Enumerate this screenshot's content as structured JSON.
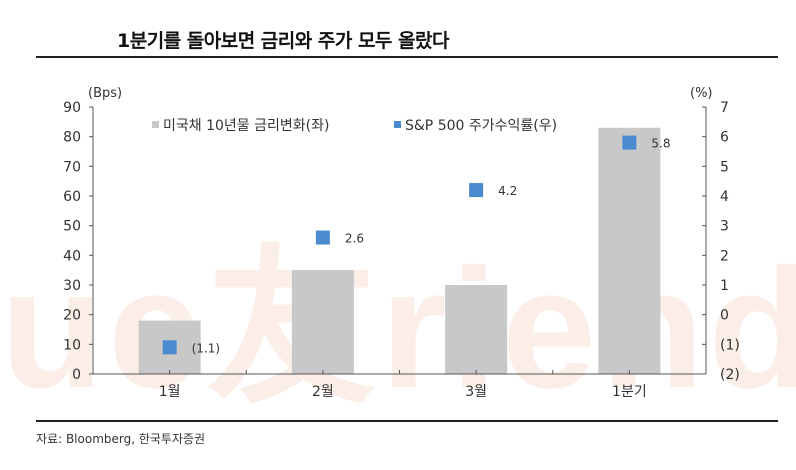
{
  "header": {
    "title": "1분기를 돌아보면 금리와 주가 모두 올랐다"
  },
  "footer": {
    "source": "자료: Bloomberg, 한국투자증권"
  },
  "watermark": {
    "text": "ue友riend"
  },
  "colors": {
    "bar": "#c8c8c8",
    "marker": "#4a8bd0",
    "axis": "#555555",
    "watermark": "#fbeee8"
  },
  "chart_data": {
    "type": "bar",
    "title": "1분기를 돌아보면 금리와 주가 모두 올랐다",
    "categories": [
      "1월",
      "2월",
      "3월",
      "1분기"
    ],
    "series": [
      {
        "name": "미국채 10년물 금리변화(좌)",
        "type": "bar",
        "axis": "left",
        "values": [
          18,
          35,
          30,
          83
        ]
      },
      {
        "name": "S&P 500 주가수익률(우)",
        "type": "scatter",
        "axis": "right",
        "values": [
          -1.1,
          2.6,
          4.2,
          5.8
        ],
        "data_labels": [
          "(1.1)",
          "2.6",
          "4.2",
          "5.8"
        ]
      }
    ],
    "left_axis": {
      "unit": "(Bps)",
      "ylim": [
        0,
        90
      ],
      "ticks": [
        "0",
        "10",
        "20",
        "30",
        "40",
        "50",
        "60",
        "70",
        "80",
        "90"
      ]
    },
    "right_axis": {
      "unit": "(%)",
      "ylim": [
        -2,
        7
      ],
      "ticks": [
        "(2)",
        "(1)",
        "0",
        "1",
        "2",
        "3",
        "4",
        "5",
        "6",
        "7"
      ]
    },
    "xlabel": "",
    "ylabel": "Bps",
    "y2label": "%",
    "grid": false,
    "legend_position": "top-inside"
  }
}
